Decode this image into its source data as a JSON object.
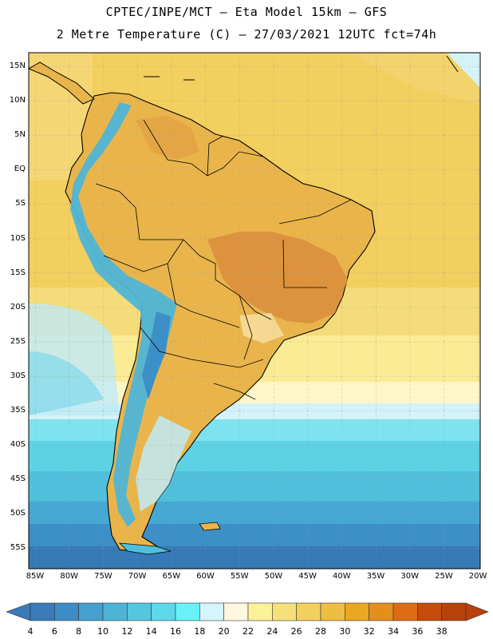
{
  "title": {
    "line1": "CPTEC/INPE/MCT —  Eta Model 15km — GFS",
    "line2": "2 Metre Temperature (C) — 27/03/2021 12UTC fct=74h"
  },
  "axes": {
    "lat_labels": [
      "15N",
      "10N",
      "5N",
      "EQ",
      "5S",
      "10S",
      "15S",
      "20S",
      "25S",
      "30S",
      "35S",
      "40S",
      "45S",
      "50S",
      "55S"
    ],
    "lon_labels": [
      "85W",
      "80W",
      "75W",
      "70W",
      "65W",
      "60W",
      "55W",
      "50W",
      "45W",
      "40W",
      "35W",
      "30W",
      "25W",
      "20W"
    ]
  },
  "legend": {
    "units": "C",
    "labels": [
      "4",
      "6",
      "8",
      "10",
      "12",
      "14",
      "16",
      "18",
      "20",
      "22",
      "24",
      "26",
      "28",
      "30",
      "32",
      "34",
      "36",
      "38"
    ],
    "colors": [
      "#3a7ab8",
      "#3d8cc6",
      "#45a0d0",
      "#4db4d8",
      "#55c6e0",
      "#5ed8ea",
      "#66f2f8",
      "#d6f4fb",
      "#fff8e0",
      "#fcf29a",
      "#f6e07a",
      "#f2d060",
      "#eebe40",
      "#eaa820",
      "#e48f1c",
      "#dd6c12",
      "#c84a0c",
      "#b8400a"
    ]
  },
  "colors": {
    "background": "#ffffff",
    "warm_land": "#e9b54b",
    "hot_core": "#d98a3a",
    "ocean_tropical": "#f3d166",
    "ocean_subtropical": "#faec93",
    "ocean_cool": "#5dd2e4",
    "ocean_cold": "#3a86c0",
    "andes": "#4fb5d6",
    "outline": "#000000"
  }
}
